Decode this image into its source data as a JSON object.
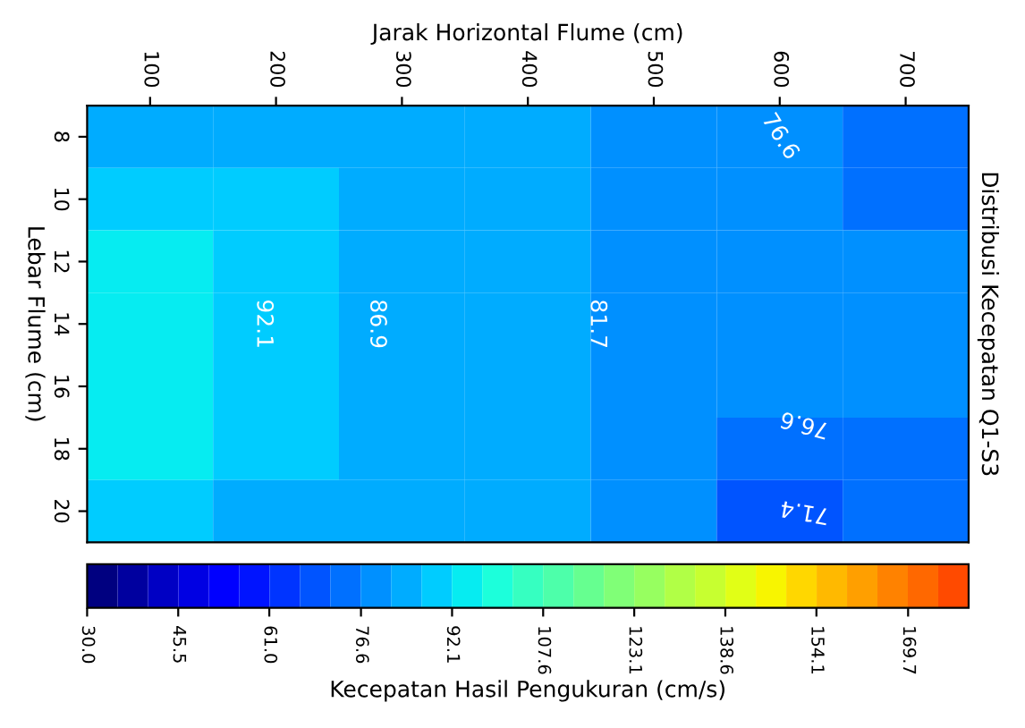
{
  "chart_data": {
    "type": "heatmap",
    "title": "Distribusi Kecepatan Q1-S3",
    "xlabel": "Jarak Horizontal Flume (cm)",
    "ylabel": "Lebar Flume (cm)",
    "clabel": "Kecepatan Hasil Pengukuran (cm/s)",
    "categories": [
      "100",
      "200",
      "300",
      "400",
      "500",
      "600",
      "700"
    ],
    "y_categories": [
      "8",
      "10",
      "12",
      "14",
      "16",
      "18",
      "20"
    ],
    "cells": [
      [
        84.1,
        86.2,
        84.1,
        82.3,
        79.6,
        77.4,
        72.9
      ],
      [
        88.3,
        87.6,
        84.4,
        82.7,
        79.8,
        78.8,
        75.2
      ],
      [
        92.5,
        88.9,
        84.7,
        83.1,
        80.0,
        80.3,
        77.5
      ],
      [
        96.7,
        90.2,
        84.9,
        83.4,
        80.2,
        81.7,
        79.8
      ],
      [
        95.4,
        89.4,
        84.8,
        83.2,
        80.0,
        78.7,
        77.9
      ],
      [
        92.9,
        88.1,
        84.5,
        82.9,
        79.8,
        74.6,
        74.9
      ],
      [
        90.3,
        86.8,
        84.2,
        82.5,
        79.5,
        70.5,
        71.9
      ]
    ],
    "clim": [
      30.0,
      180.0
    ],
    "cticks": [
      {
        "value": 30.0,
        "label": "30.0"
      },
      45.5,
      {
        "value": 61.0,
        "label": "61.0"
      },
      76.6,
      92.1,
      107.6,
      123.1,
      138.6,
      154.1,
      169.7
    ],
    "annotations": [
      "92.1",
      "86.9",
      "81.7",
      "76.6",
      "76.6",
      "71.4"
    ],
    "grid": false
  }
}
